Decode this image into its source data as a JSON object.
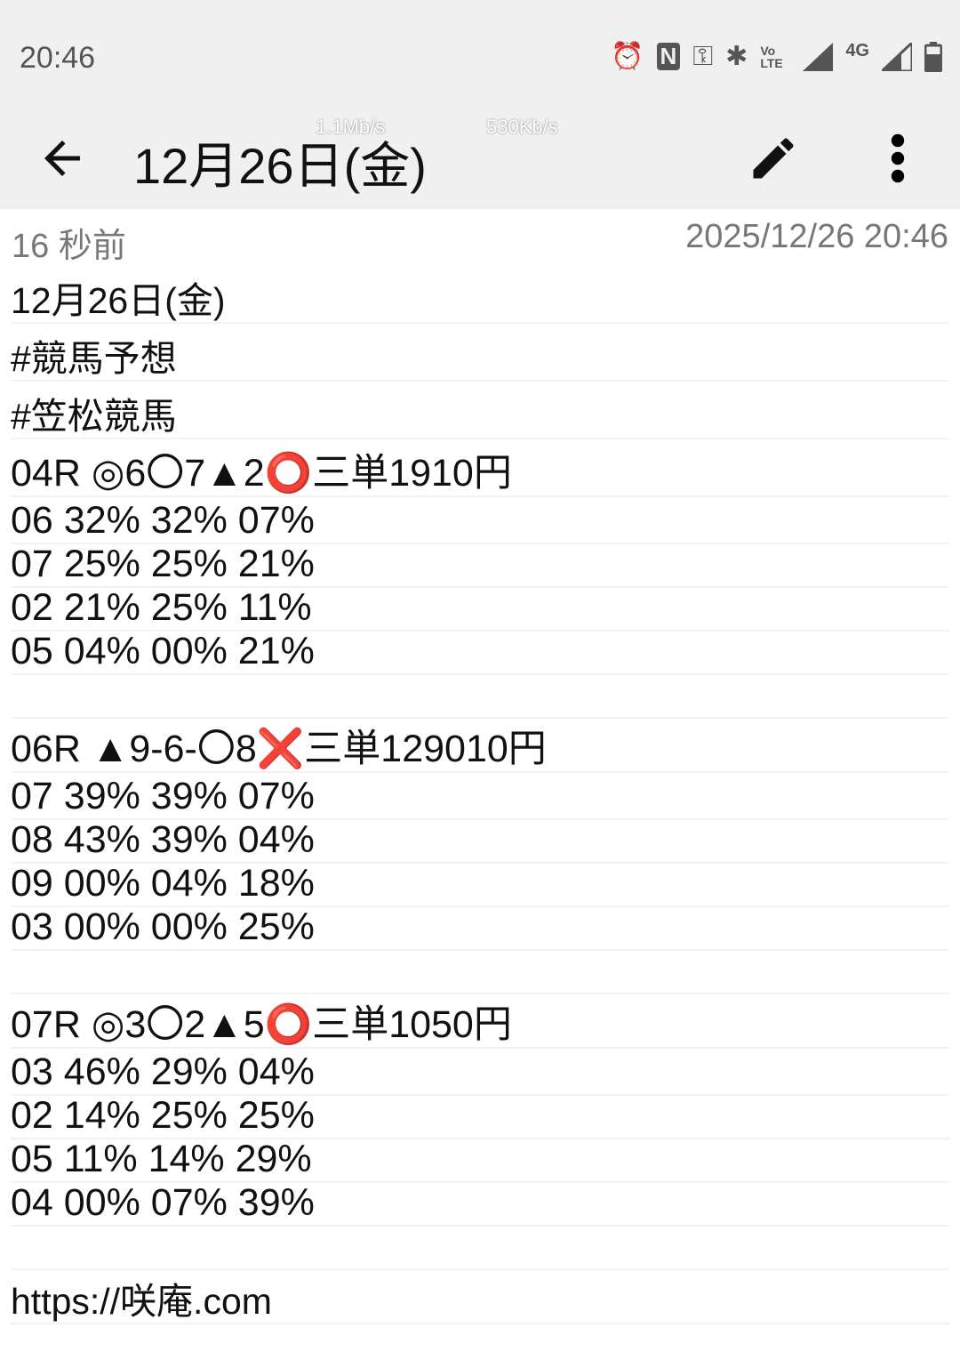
{
  "status_bar": {
    "time": "20:46",
    "icons": [
      "alarm-icon",
      "nfc-icon",
      "vpn-key-icon",
      "bluetooth-icon",
      "volte-icon",
      "signal-icon",
      "4g-icon",
      "signal-icon",
      "battery-icon"
    ],
    "network_label": "4G",
    "volte_label": "Vo LTE"
  },
  "app_bar": {
    "title": "12月26日(金)",
    "speed_1": "1.1Mb/s",
    "speed_2": "530Kb/s"
  },
  "meta": {
    "relative_time": "16 秒前",
    "timestamp": "2025/12/26 20:46"
  },
  "note_lines": [
    "12月26日(金)",
    "#競馬予想",
    "#笠松競馬",
    "04R ◎6〇7▲2⭕三単1910円",
    "06 32% 32% 07%",
    "07 25% 25% 21%",
    "02 21% 25% 11%",
    "05 04% 00% 21%",
    "",
    "06R ▲9-6-〇8❌三単129010円",
    "07 39% 39% 07%",
    "08 43% 39% 04%",
    "09 00% 04% 18%",
    "03 00% 00% 25%",
    "",
    "07R ◎3〇2▲5⭕三単1050円",
    "03 46% 29% 04%",
    "02 14% 25% 25%",
    "05 11% 14% 29%",
    "04 00% 07% 39%",
    "",
    "https://咲庵.com"
  ]
}
